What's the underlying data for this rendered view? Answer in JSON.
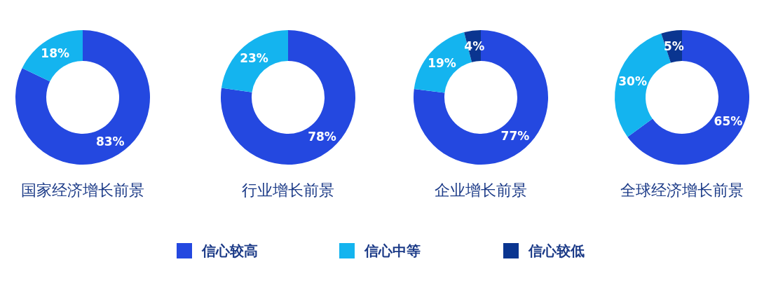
{
  "chart_data": [
    {
      "type": "donut",
      "title": "国家经济增长前景",
      "categories": [
        null,
        null
      ],
      "values": [
        83,
        18
      ],
      "value_labels": [
        "83%",
        "18%"
      ],
      "colors": [
        "#2448e0",
        "#14b4ef"
      ]
    },
    {
      "type": "donut",
      "title": "行业增长前景",
      "categories": [
        null,
        null
      ],
      "values": [
        78,
        23
      ],
      "value_labels": [
        "78%",
        "23%"
      ],
      "colors": [
        "#2448e0",
        "#14b4ef"
      ]
    },
    {
      "type": "donut",
      "title": "企业增长前景",
      "categories": [
        "信心较高",
        "信心中等",
        "信心较低"
      ],
      "values": [
        77,
        19,
        4
      ],
      "value_labels": [
        "77%",
        "19%",
        "4%"
      ],
      "colors": [
        "#2448e0",
        "#14b4ef",
        "#0a3590"
      ],
      "legend": "bottom"
    },
    {
      "type": "donut",
      "title": "全球经济增长前景",
      "categories": [
        null,
        null,
        null
      ],
      "values": [
        65,
        30,
        5
      ],
      "value_labels": [
        "65%",
        "30%",
        "5%"
      ],
      "colors": [
        "#2448e0",
        "#14b4ef",
        "#0a3590"
      ]
    }
  ]
}
